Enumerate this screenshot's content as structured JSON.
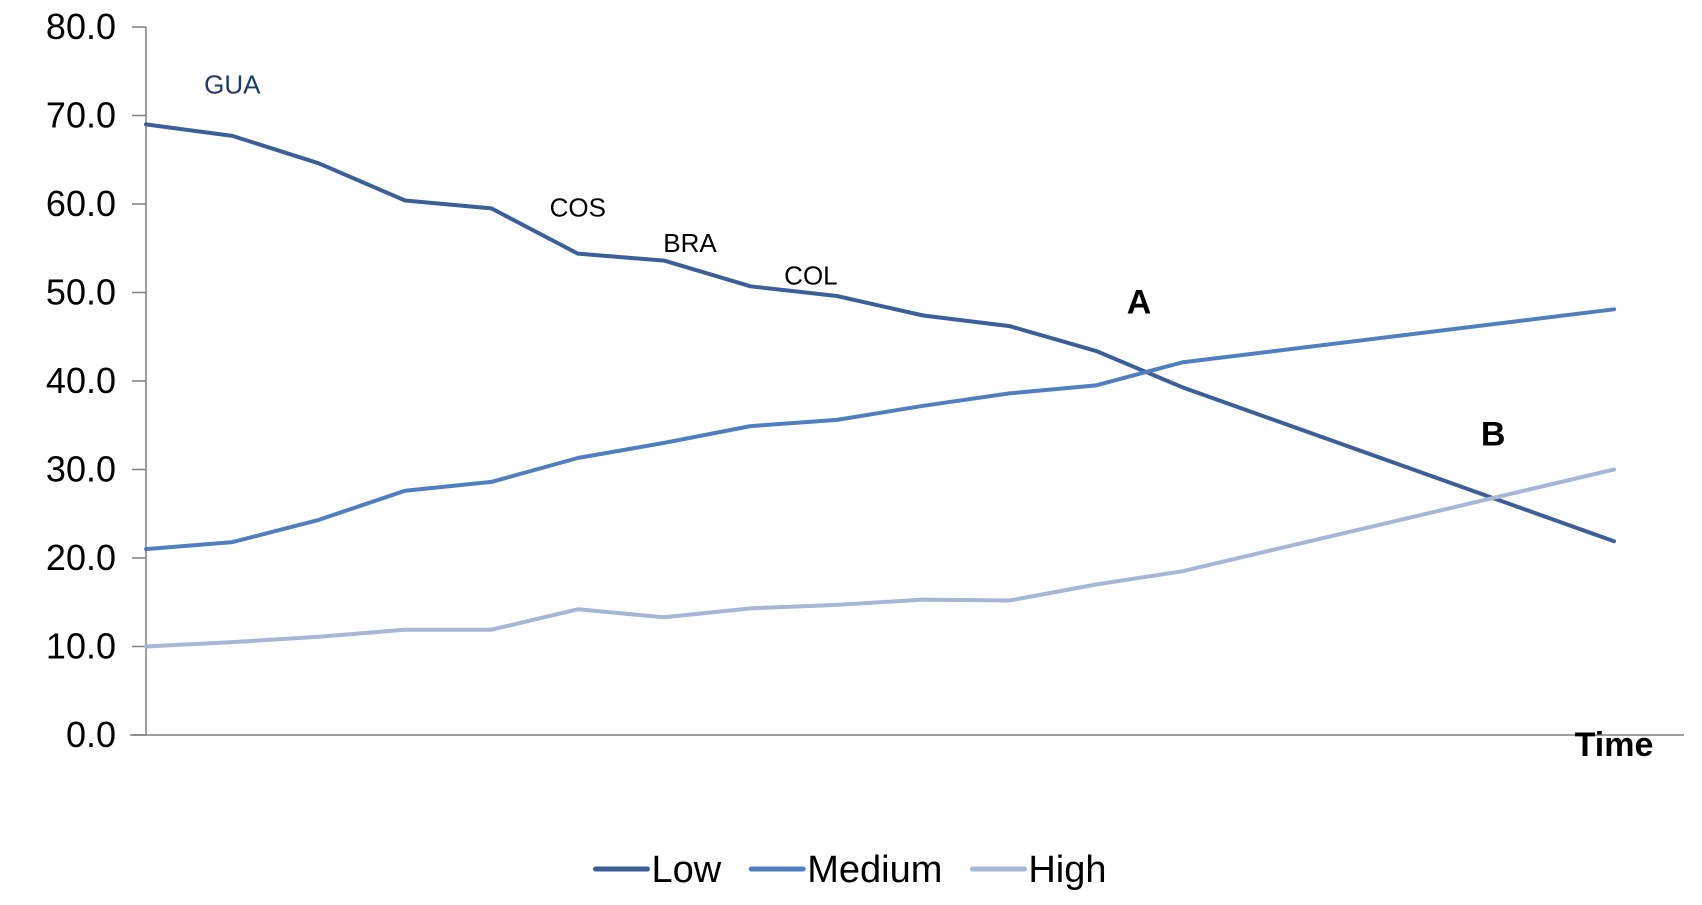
{
  "chart_data": {
    "type": "line",
    "title": "",
    "xlabel": "Time",
    "ylabel": "",
    "ylim": [
      0,
      80
    ],
    "yticks": [
      "0.0",
      "10.0",
      "20.0",
      "30.0",
      "40.0",
      "50.0",
      "60.0",
      "70.0",
      "80.0"
    ],
    "ytick_values": [
      0,
      10,
      20,
      30,
      40,
      50,
      60,
      70,
      80
    ],
    "x_points": 18,
    "grid": false,
    "legend_position": "bottom",
    "series": [
      {
        "name": "Low",
        "color": "#3b5f99",
        "values": [
          69.0,
          67.7,
          64.6,
          60.4,
          59.5,
          54.4,
          53.6,
          50.7,
          49.6,
          47.4,
          46.2,
          43.4,
          39.3,
          null,
          null,
          null,
          null,
          21.9
        ]
      },
      {
        "name": "Medium",
        "color": "#4f7fbf",
        "values": [
          21.0,
          21.8,
          24.3,
          27.6,
          28.6,
          31.3,
          33.0,
          34.9,
          35.6,
          37.2,
          38.6,
          39.5,
          42.1,
          null,
          null,
          null,
          null,
          48.1
        ]
      },
      {
        "name": "High",
        "color": "#a5b7d7",
        "values": [
          10.0,
          10.5,
          11.1,
          11.9,
          11.9,
          14.2,
          13.3,
          14.3,
          14.7,
          15.3,
          15.2,
          17.0,
          18.5,
          null,
          null,
          null,
          null,
          30.0
        ]
      }
    ],
    "annotations": [
      {
        "text": "GUA",
        "x": 1,
        "y": 72.5,
        "style": "small",
        "color": "#1f3864"
      },
      {
        "text": "COS",
        "x": 5,
        "y": 58.6,
        "style": "small",
        "color": "#000000"
      },
      {
        "text": "BRA",
        "x": 6.3,
        "y": 54.6,
        "style": "small",
        "color": "#000000"
      },
      {
        "text": "COL",
        "x": 7.7,
        "y": 50.9,
        "style": "small",
        "color": "#000000"
      },
      {
        "text": "A",
        "x": 11.5,
        "y": 47.6,
        "style": "bold",
        "color": "#000000"
      },
      {
        "text": "B",
        "x": 15.6,
        "y": 32.7,
        "style": "bold",
        "color": "#000000"
      }
    ]
  },
  "legend": {
    "items": [
      "Low",
      "Medium",
      "High"
    ]
  }
}
